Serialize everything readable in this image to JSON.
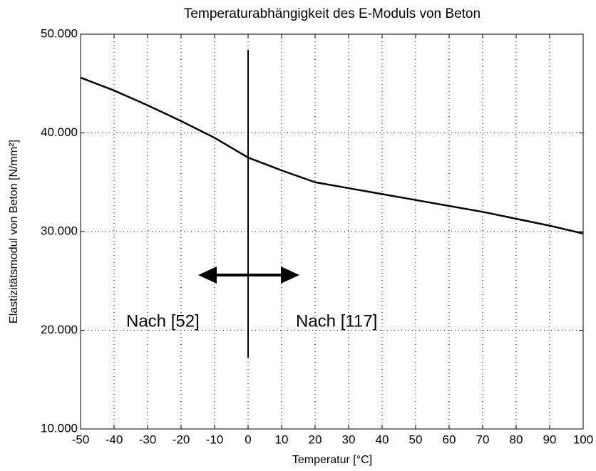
{
  "chart_data": {
    "type": "line",
    "title": "Temperaturabhängigkeit des E-Moduls von Beton",
    "xlabel": "Temperatur [°C]",
    "ylabel": "Elastizitätsmodul von Beton [N/mm²]",
    "annotations": [
      "Nach [52]",
      "Nach [117]"
    ],
    "x": [
      -50,
      -40,
      -30,
      -20,
      -10,
      0,
      10,
      20,
      30,
      40,
      50,
      60,
      70,
      80,
      90,
      100
    ],
    "values": [
      45600,
      44300,
      42800,
      41200,
      39500,
      37500,
      36200,
      35000,
      34400,
      33800,
      33200,
      32600,
      32000,
      31300,
      30600,
      29800
    ],
    "color": "#000000",
    "xlim": [
      -50,
      100
    ],
    "xticks": [
      -50,
      -40,
      -30,
      -20,
      -10,
      0,
      10,
      20,
      30,
      40,
      50,
      60,
      70,
      80,
      90,
      100
    ],
    "ylim": [
      10000,
      50000
    ],
    "yticks": [
      {
        "value": 10000,
        "label": "10.000"
      },
      {
        "value": 20000,
        "label": "20.000"
      },
      {
        "value": 30000,
        "label": "30.000"
      },
      {
        "value": 40000,
        "label": "40.000"
      },
      {
        "value": 50000,
        "label": "50.000"
      }
    ],
    "grid": true
  }
}
